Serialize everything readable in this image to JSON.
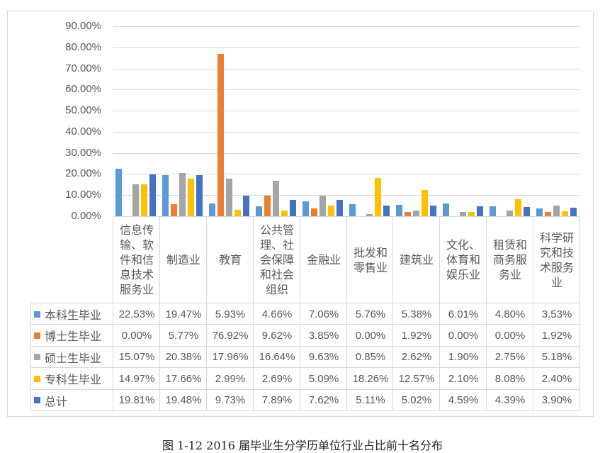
{
  "caption": "图 1-12 2016 届毕业生分学历单位行业占比前十名分布",
  "chart_data": {
    "type": "bar",
    "title": "",
    "xlabel": "",
    "ylabel": "",
    "ylim": [
      0,
      0.9
    ],
    "y_ticks": [
      "90.00%",
      "80.00%",
      "70.00%",
      "60.00%",
      "50.00%",
      "40.00%",
      "30.00%",
      "20.00%",
      "10.00%",
      "0.00%"
    ],
    "grid": true,
    "legend_position": "data-table",
    "categories": [
      "信息传输、软件和信息技术服务业",
      "制造业",
      "教育",
      "公共管理、社会保障和社会组织",
      "金融业",
      "批发和零售业",
      "建筑业",
      "文化、体育和娱乐业",
      "租赁和商务服务业",
      "科学研究和技术服务业"
    ],
    "category_lines": [
      [
        "信息传",
        "输、软",
        "件和信",
        "息技术",
        "服务业"
      ],
      [
        "制造业"
      ],
      [
        "教育"
      ],
      [
        "公共管",
        "理、社",
        "会保障",
        "和社会",
        "组织"
      ],
      [
        "金融业"
      ],
      [
        "批发和",
        "零售业"
      ],
      [
        "建筑业"
      ],
      [
        "文化、",
        "体育和",
        "娱乐业"
      ],
      [
        "租赁和",
        "商务服",
        "务业"
      ],
      [
        "科学研",
        "究和技",
        "术服务",
        "业"
      ]
    ],
    "series": [
      {
        "name": "本科生毕业",
        "color": "#5B9BD5",
        "values": [
          22.53,
          19.47,
          5.93,
          4.66,
          7.06,
          5.76,
          5.38,
          6.01,
          4.8,
          3.53
        ],
        "labels": [
          "22.53%",
          "19.47%",
          "5.93%",
          "4.66%",
          "7.06%",
          "5.76%",
          "5.38%",
          "6.01%",
          "4.80%",
          "3.53%"
        ]
      },
      {
        "name": "博士生毕业",
        "color": "#ED7D31",
        "values": [
          0.0,
          5.77,
          76.92,
          9.62,
          3.85,
          0.0,
          1.92,
          0.0,
          0.0,
          1.92
        ],
        "labels": [
          "0.00%",
          "5.77%",
          "76.92%",
          "9.62%",
          "3.85%",
          "0.00%",
          "1.92%",
          "0.00%",
          "0.00%",
          "1.92%"
        ]
      },
      {
        "name": "硕士生毕业",
        "color": "#A5A5A5",
        "values": [
          15.07,
          20.38,
          17.96,
          16.64,
          9.63,
          0.85,
          2.62,
          1.9,
          2.75,
          5.18
        ],
        "labels": [
          "15.07%",
          "20.38%",
          "17.96%",
          "16.64%",
          "9.63%",
          "0.85%",
          "2.62%",
          "1.90%",
          "2.75%",
          "5.18%"
        ]
      },
      {
        "name": "专科生毕业",
        "color": "#FFC000",
        "values": [
          14.97,
          17.66,
          2.99,
          2.69,
          5.09,
          18.26,
          12.57,
          2.1,
          8.08,
          2.4
        ],
        "labels": [
          "14.97%",
          "17.66%",
          "2.99%",
          "2.69%",
          "5.09%",
          "18.26%",
          "12.57%",
          "2.10%",
          "8.08%",
          "2.40%"
        ]
      },
      {
        "name": "总计",
        "color": "#4472C4",
        "values": [
          19.81,
          19.48,
          9.73,
          7.89,
          7.62,
          5.11,
          5.02,
          4.59,
          4.39,
          3.9
        ],
        "labels": [
          "19.81%",
          "19.48%",
          "9.73%",
          "7.89%",
          "7.62%",
          "5.11%",
          "5.02%",
          "4.59%",
          "4.39%",
          "3.90%"
        ]
      }
    ]
  }
}
